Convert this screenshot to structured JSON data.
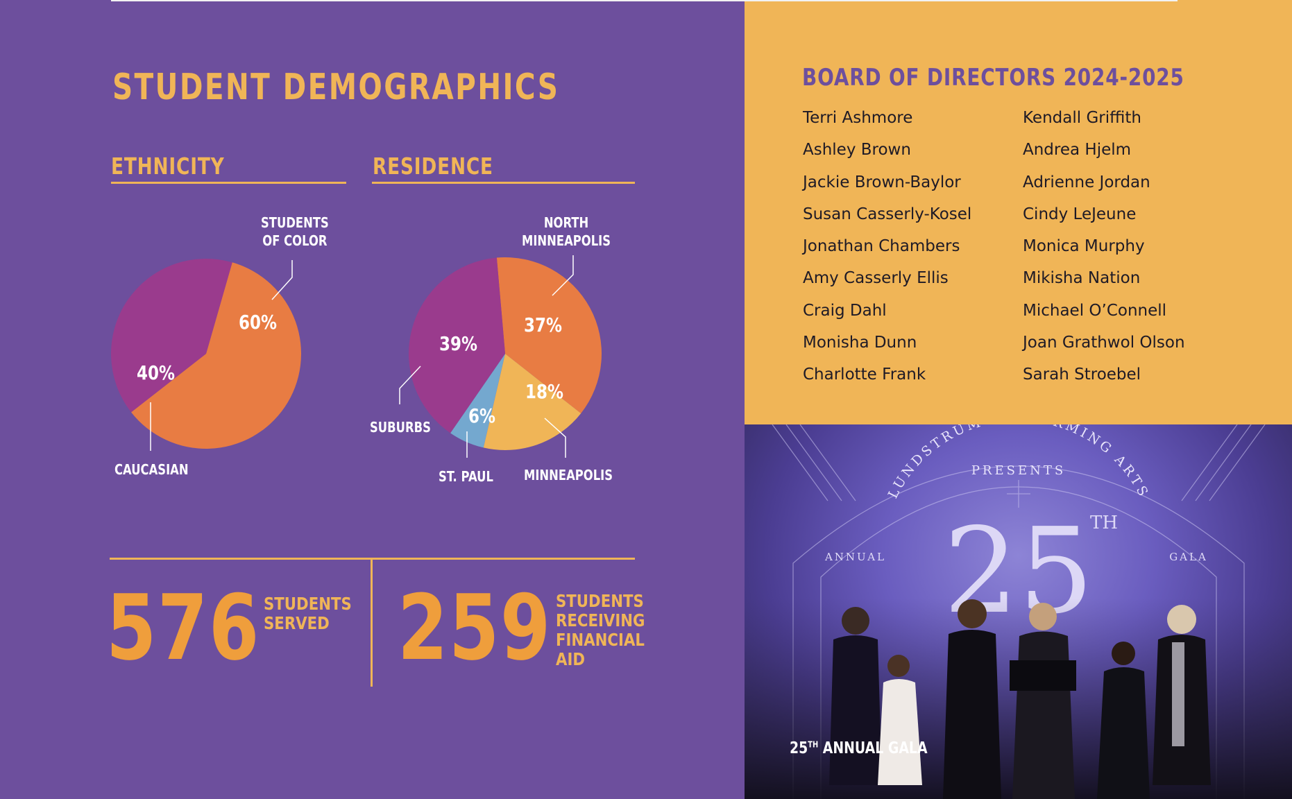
{
  "page_title": "STUDENT DEMOGRAPHICS",
  "ethnicity": {
    "title": "ETHNICITY",
    "labels": {
      "students_of_color": "STUDENTS\nOF COLOR",
      "caucasian": "CAUCASIAN"
    },
    "pct_labels": {
      "students_of_color": "60%",
      "caucasian": "40%"
    }
  },
  "residence": {
    "title": "RESIDENCE",
    "labels": {
      "north_minneapolis": "NORTH\nMINNEAPOLIS",
      "suburbs": "SUBURBS",
      "st_paul": "ST. PAUL",
      "minneapolis": "MINNEAPOLIS"
    },
    "pct_labels": {
      "north_minneapolis": "37%",
      "suburbs": "39%",
      "st_paul": "6%",
      "minneapolis": "18%"
    }
  },
  "chart_data": [
    {
      "type": "pie",
      "title": "ETHNICITY",
      "categories": [
        "STUDENTS OF COLOR",
        "CAUCASIAN"
      ],
      "values": [
        60,
        40
      ],
      "colors": [
        "#e87c43",
        "#9a3b8d"
      ]
    },
    {
      "type": "pie",
      "title": "RESIDENCE",
      "categories": [
        "NORTH MINNEAPOLIS",
        "MINNEAPOLIS",
        "ST. PAUL",
        "SUBURBS"
      ],
      "values": [
        37,
        18,
        6,
        39
      ],
      "colors": [
        "#e87c43",
        "#f0b557",
        "#74a8cf",
        "#9a3b8d"
      ]
    }
  ],
  "stats": [
    {
      "number": "576",
      "label": "STUDENTS SERVED"
    },
    {
      "number": "259",
      "label": "STUDENTS RECEIVING FINANCIAL AID"
    }
  ],
  "board": {
    "title": "BOARD OF DIRECTORS 2024-2025",
    "col1": [
      "Terri Ashmore",
      "Ashley Brown",
      "Jackie Brown-Baylor",
      "Susan Casserly-Kosel",
      "Jonathan Chambers",
      "Amy Casserly Ellis",
      "Craig Dahl",
      "Monisha Dunn",
      "Charlotte Frank"
    ],
    "col2": [
      "Kendall Griffith",
      "Andrea Hjelm",
      "Adrienne Jordan",
      "Cindy LeJeune",
      "Monica Murphy",
      "Mikisha Nation",
      "Michael O’Connell",
      "Joan Grathwol Olson",
      "Sarah Stroebel"
    ]
  },
  "photo": {
    "banner_arc": "LUNDSTRUM PERFORMING ARTS",
    "banner_presents": "PRESENTS",
    "banner_number": "25",
    "banner_suffix": "TH",
    "banner_left": "ANNUAL",
    "banner_right": "GALA",
    "caption_num": "25",
    "caption_sup": "TH",
    "caption_text": " ANNUAL GALA"
  },
  "colors": {
    "purple": "#6d4f9d",
    "gold": "#f0b557",
    "orange": "#e87c43",
    "magenta": "#9a3b8d",
    "blue": "#74a8cf"
  }
}
